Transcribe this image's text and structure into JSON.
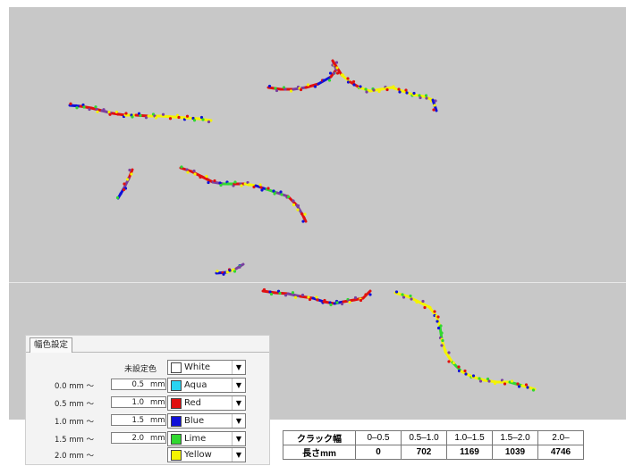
{
  "colors": {
    "viewport_bg": "#c8c8c8",
    "white": "#ffffff",
    "aqua": "#29d4f0",
    "red": "#e01010",
    "blue": "#1010d8",
    "lime": "#30d830",
    "yellow": "#f4f400",
    "purple": "#7a3fa0"
  },
  "panel": {
    "tab_label": "幅色設定",
    "unset_label": "未設定色",
    "rows": [
      {
        "from": "",
        "to": "",
        "unit": "",
        "color_name": "White",
        "color": "#ffffff",
        "unset": true
      },
      {
        "from": "0.0 mm ～",
        "to": "0.5",
        "unit": "mm",
        "color_name": "Aqua",
        "color": "#29d4f0"
      },
      {
        "from": "0.5 mm ～",
        "to": "1.0",
        "unit": "mm",
        "color_name": "Red",
        "color": "#e01010"
      },
      {
        "from": "1.0 mm ～",
        "to": "1.5",
        "unit": "mm",
        "color_name": "Blue",
        "color": "#1010d8"
      },
      {
        "from": "1.5 mm ～",
        "to": "2.0",
        "unit": "mm",
        "color_name": "Lime",
        "color": "#30d830"
      },
      {
        "from": "2.0 mm ～",
        "to": "",
        "unit": "",
        "color_name": "Yellow",
        "color": "#f4f400"
      }
    ]
  },
  "legend_table": {
    "header_label": "クラック幅",
    "length_label": "長さmm",
    "ranges": [
      "0–0.5",
      "0.5–1.0",
      "1.0–1.5",
      "1.5–2.0",
      "2.0–"
    ],
    "lengths": [
      "0",
      "702",
      "1169",
      "1039",
      "4746"
    ]
  }
}
